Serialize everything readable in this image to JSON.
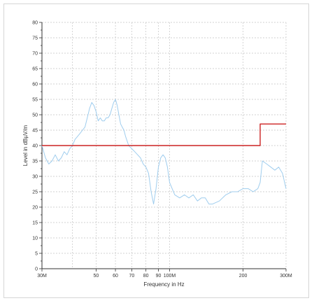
{
  "chart_data": {
    "type": "line",
    "title": "",
    "xlabel": "Frequency in Hz",
    "ylabel": "Level in dBµV/m",
    "x_scale": "log",
    "xlim": [
      30000000,
      300000000
    ],
    "ylim": [
      0,
      80
    ],
    "y_ticks": [
      0,
      5,
      10,
      15,
      20,
      25,
      30,
      35,
      40,
      45,
      50,
      55,
      60,
      65,
      70,
      75,
      80
    ],
    "x_ticks": [
      {
        "value": 30000000,
        "label": "30M"
      },
      {
        "value": 50000000,
        "label": "50"
      },
      {
        "value": 60000000,
        "label": "60"
      },
      {
        "value": 70000000,
        "label": "70"
      },
      {
        "value": 80000000,
        "label": "80"
      },
      {
        "value": 90000000,
        "label": "90"
      },
      {
        "value": 100000000,
        "label": "100M"
      },
      {
        "value": 200000000,
        "label": "200"
      },
      {
        "value": 300000000,
        "label": "300M"
      }
    ],
    "grid": true,
    "series": [
      {
        "color": "#9fcdee",
        "x": [
          30000000,
          31000000,
          32000000,
          33000000,
          34000000,
          35000000,
          36000000,
          37000000,
          38000000,
          39000000,
          40000000,
          41000000,
          42000000,
          43000000,
          44000000,
          45000000,
          46000000,
          47000000,
          48000000,
          49000000,
          50000000,
          51000000,
          52000000,
          53000000,
          54000000,
          55000000,
          56000000,
          57000000,
          58000000,
          59000000,
          60000000,
          61000000,
          62000000,
          63000000,
          64000000,
          65000000,
          66000000,
          68000000,
          70000000,
          72000000,
          74000000,
          76000000,
          78000000,
          80000000,
          82000000,
          84000000,
          86000000,
          88000000,
          90000000,
          92000000,
          94000000,
          96000000,
          98000000,
          100000000,
          105000000,
          110000000,
          115000000,
          120000000,
          125000000,
          130000000,
          135000000,
          140000000,
          145000000,
          150000000,
          160000000,
          170000000,
          180000000,
          190000000,
          200000000,
          210000000,
          220000000,
          230000000,
          235000000,
          240000000,
          250000000,
          260000000,
          270000000,
          280000000,
          290000000,
          300000000
        ],
        "values": [
          40,
          36,
          34,
          35,
          37,
          35,
          36,
          38,
          37,
          39,
          40,
          42,
          43,
          44,
          45,
          46,
          49,
          52,
          54,
          53,
          51,
          48,
          49,
          48,
          48,
          49,
          49,
          50,
          52,
          54,
          55,
          53,
          50,
          47,
          46,
          45,
          43,
          40,
          39,
          38,
          37,
          36,
          34,
          33,
          31,
          25,
          21,
          26,
          33,
          36,
          37,
          36,
          33,
          28,
          24,
          23,
          24,
          23,
          24,
          22,
          23,
          23,
          21,
          21,
          22,
          24,
          25,
          25,
          26,
          26,
          25,
          26,
          28,
          35,
          34,
          33,
          32,
          33,
          31,
          26
        ]
      },
      {
        "color": "#cc2222",
        "x": [
          30000000,
          235000000,
          235000000,
          300000000
        ],
        "values": [
          40,
          40,
          47,
          47
        ]
      }
    ]
  }
}
